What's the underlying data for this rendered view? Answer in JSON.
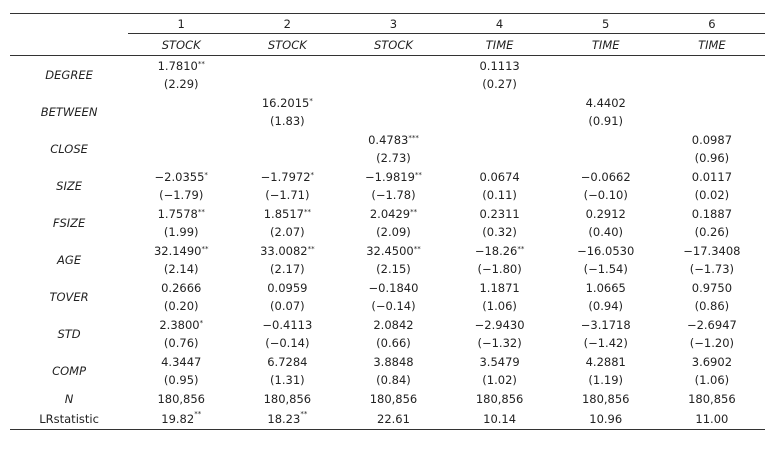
{
  "table": {
    "columns": [
      "1",
      "2",
      "3",
      "4",
      "5",
      "6"
    ],
    "dependents": [
      "STOCK",
      "STOCK",
      "STOCK",
      "TIME",
      "TIME",
      "TIME"
    ],
    "rows": [
      {
        "label": "DEGREE",
        "italic": true,
        "cells": [
          {
            "coef": "1.7810",
            "star": "**",
            "t": "(2.29)"
          },
          {
            "coef": "",
            "star": "",
            "t": ""
          },
          {
            "coef": "",
            "star": "",
            "t": ""
          },
          {
            "coef": "0.1113",
            "star": "",
            "t": "(0.27)"
          },
          {
            "coef": "",
            "star": "",
            "t": ""
          },
          {
            "coef": "",
            "star": "",
            "t": ""
          }
        ]
      },
      {
        "label": "BETWEEN",
        "italic": true,
        "cells": [
          {
            "coef": "",
            "star": "",
            "t": ""
          },
          {
            "coef": "16.2015",
            "star": "*",
            "t": "(1.83)"
          },
          {
            "coef": "",
            "star": "",
            "t": ""
          },
          {
            "coef": "",
            "star": "",
            "t": ""
          },
          {
            "coef": "4.4402",
            "star": "",
            "t": "(0.91)"
          },
          {
            "coef": "",
            "star": "",
            "t": ""
          }
        ]
      },
      {
        "label": "CLOSE",
        "italic": true,
        "cells": [
          {
            "coef": "",
            "star": "",
            "t": ""
          },
          {
            "coef": "",
            "star": "",
            "t": ""
          },
          {
            "coef": "0.4783",
            "star": "***",
            "t": "(2.73)"
          },
          {
            "coef": "",
            "star": "",
            "t": ""
          },
          {
            "coef": "",
            "star": "",
            "t": ""
          },
          {
            "coef": "0.0987",
            "star": "",
            "t": "(0.96)"
          }
        ]
      },
      {
        "label": "SIZE",
        "italic": true,
        "cells": [
          {
            "coef": "−2.0355",
            "star": "*",
            "t": "(−1.79)"
          },
          {
            "coef": "−1.7972",
            "star": "*",
            "t": "(−1.71)"
          },
          {
            "coef": "−1.9819",
            "star": "**",
            "t": "(−1.78)"
          },
          {
            "coef": "0.0674",
            "star": "",
            "t": "(0.11)"
          },
          {
            "coef": "−0.0662",
            "star": "",
            "t": "(−0.10)"
          },
          {
            "coef": "0.0117",
            "star": "",
            "t": "(0.02)"
          }
        ]
      },
      {
        "label": "FSIZE",
        "italic": true,
        "cells": [
          {
            "coef": "1.7578",
            "star": "**",
            "t": "(1.99)"
          },
          {
            "coef": "1.8517",
            "star": "**",
            "t": "(2.07)"
          },
          {
            "coef": "2.0429",
            "star": "**",
            "t": "(2.09)"
          },
          {
            "coef": "0.2311",
            "star": "",
            "t": "(0.32)"
          },
          {
            "coef": "0.2912",
            "star": "",
            "t": "(0.40)"
          },
          {
            "coef": "0.1887",
            "star": "",
            "t": "(0.26)"
          }
        ]
      },
      {
        "label": "AGE",
        "italic": true,
        "cells": [
          {
            "coef": "32.1490",
            "star": "**",
            "t": "(2.14)"
          },
          {
            "coef": "33.0082",
            "star": "**",
            "t": "(2.17)"
          },
          {
            "coef": "32.4500",
            "star": "**",
            "t": "(2.15)"
          },
          {
            "coef": "−18.26",
            "star": "**",
            "t": "(−1.80)"
          },
          {
            "coef": "−16.0530",
            "star": "",
            "t": "(−1.54)"
          },
          {
            "coef": "−17.3408",
            "star": "",
            "t": "(−1.73)"
          }
        ]
      },
      {
        "label": "TOVER",
        "italic": true,
        "cells": [
          {
            "coef": "0.2666",
            "star": "",
            "t": "(0.20)"
          },
          {
            "coef": "0.0959",
            "star": "",
            "t": "(0.07)"
          },
          {
            "coef": "−0.1840",
            "star": "",
            "t": "(−0.14)"
          },
          {
            "coef": "1.1871",
            "star": "",
            "t": "(1.06)"
          },
          {
            "coef": "1.0665",
            "star": "",
            "t": "(0.94)"
          },
          {
            "coef": "0.9750",
            "star": "",
            "t": "(0.86)"
          }
        ]
      },
      {
        "label": "STD",
        "italic": true,
        "cells": [
          {
            "coef": "2.3800",
            "star": "*",
            "t": "(0.76)"
          },
          {
            "coef": "−0.4113",
            "star": "",
            "t": "(−0.14)"
          },
          {
            "coef": "2.0842",
            "star": "",
            "t": "(0.66)"
          },
          {
            "coef": "−2.9430",
            "star": "",
            "t": "(−1.32)"
          },
          {
            "coef": "−3.1718",
            "star": "",
            "t": "(−1.42)"
          },
          {
            "coef": "−2.6947",
            "star": "",
            "t": "(−1.20)"
          }
        ]
      },
      {
        "label": "COMP",
        "italic": true,
        "cells": [
          {
            "coef": "4.3447",
            "star": "",
            "t": "(0.95)"
          },
          {
            "coef": "6.7284",
            "star": "",
            "t": "(1.31)"
          },
          {
            "coef": "3.8848",
            "star": "",
            "t": "(0.84)"
          },
          {
            "coef": "3.5479",
            "star": "",
            "t": "(1.02)"
          },
          {
            "coef": "4.2881",
            "star": "",
            "t": "(1.19)"
          },
          {
            "coef": "3.6902",
            "star": "",
            "t": "(1.06)"
          }
        ]
      }
    ],
    "single_rows": [
      {
        "label": "N",
        "italic": true,
        "cells": [
          {
            "v": "180,856",
            "star": ""
          },
          {
            "v": "180,856",
            "star": ""
          },
          {
            "v": "180,856",
            "star": ""
          },
          {
            "v": "180,856",
            "star": ""
          },
          {
            "v": "180,856",
            "star": ""
          },
          {
            "v": "180,856",
            "star": ""
          }
        ]
      },
      {
        "label": "LRstatistic",
        "italic": false,
        "cells": [
          {
            "v": "19.82",
            "star": "**"
          },
          {
            "v": "18.23",
            "star": "**"
          },
          {
            "v": "22.61",
            "star": ""
          },
          {
            "v": "10.14",
            "star": ""
          },
          {
            "v": "10.96",
            "star": ""
          },
          {
            "v": "11.00",
            "star": ""
          }
        ]
      }
    ]
  }
}
